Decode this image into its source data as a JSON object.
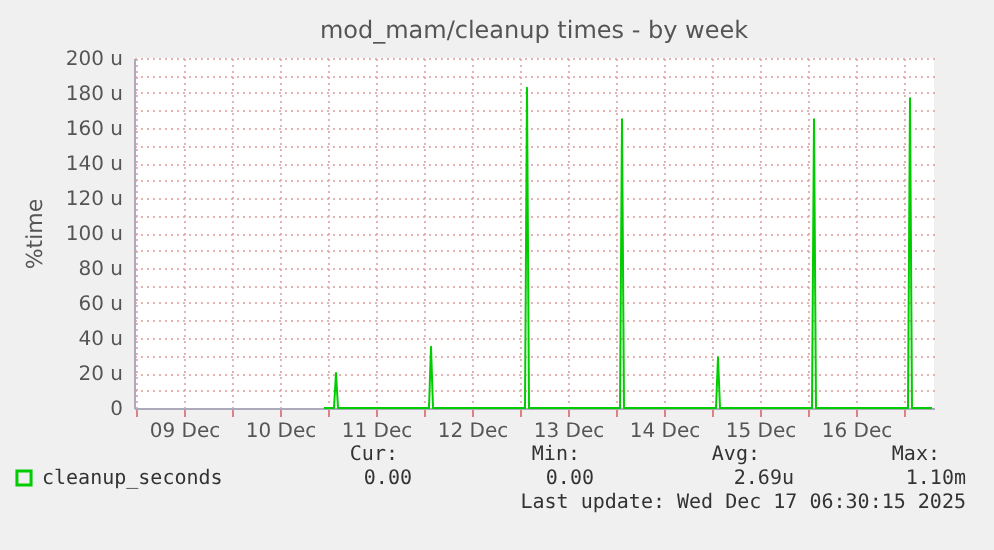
{
  "chart_data": {
    "type": "line",
    "title": "mod_mam/cleanup times - by week",
    "ylabel": "%time",
    "x": [
      "2025-12-10T23:00",
      "2025-12-11T01:30",
      "2025-12-11T02:00",
      "2025-12-11T02:30",
      "2025-12-12T01:15",
      "2025-12-12T01:45",
      "2025-12-12T02:15",
      "2025-12-13T01:15",
      "2025-12-13T01:45",
      "2025-12-13T02:15",
      "2025-12-14T01:00",
      "2025-12-14T01:30",
      "2025-12-14T02:00",
      "2025-12-15T01:00",
      "2025-12-15T01:30",
      "2025-12-15T02:00",
      "2025-12-16T01:00",
      "2025-12-16T01:30",
      "2025-12-16T02:00",
      "2025-12-17T01:00",
      "2025-12-17T01:30",
      "2025-12-17T02:00",
      "2025-12-17T07:00"
    ],
    "series": [
      {
        "name": "cleanup_seconds",
        "color": "#00cc00",
        "values": [
          0,
          0,
          20,
          0,
          0,
          35,
          0,
          0,
          183,
          0,
          0,
          165,
          0,
          0,
          29,
          0,
          0,
          165,
          0,
          0,
          177,
          0,
          0
        ]
      }
    ],
    "xlim": [
      "2025-12-08T23:30",
      "2025-12-17T07:30"
    ],
    "xticks": [
      {
        "value": "2025-12-09T00:00",
        "label": null
      },
      {
        "value": "2025-12-09T12:00",
        "label": "09 Dec"
      },
      {
        "value": "2025-12-10T00:00",
        "label": null
      },
      {
        "value": "2025-12-10T12:00",
        "label": "10 Dec"
      },
      {
        "value": "2025-12-11T00:00",
        "label": null
      },
      {
        "value": "2025-12-11T12:00",
        "label": "11 Dec"
      },
      {
        "value": "2025-12-12T00:00",
        "label": null
      },
      {
        "value": "2025-12-12T12:00",
        "label": "12 Dec"
      },
      {
        "value": "2025-12-13T00:00",
        "label": null
      },
      {
        "value": "2025-12-13T12:00",
        "label": "13 Dec"
      },
      {
        "value": "2025-12-14T00:00",
        "label": null
      },
      {
        "value": "2025-12-14T12:00",
        "label": "14 Dec"
      },
      {
        "value": "2025-12-15T00:00",
        "label": null
      },
      {
        "value": "2025-12-15T12:00",
        "label": "15 Dec"
      },
      {
        "value": "2025-12-16T00:00",
        "label": null
      },
      {
        "value": "2025-12-16T12:00",
        "label": "16 Dec"
      },
      {
        "value": "2025-12-17T00:00",
        "label": null
      }
    ],
    "ylim": [
      0,
      200
    ],
    "yticks": [
      0,
      {
        "value": 10,
        "label": null
      },
      {
        "value": 20,
        "label": "20 u"
      },
      {
        "value": 30,
        "label": null
      },
      {
        "value": 40,
        "label": "40 u"
      },
      {
        "value": 50,
        "label": null
      },
      {
        "value": 60,
        "label": "60 u"
      },
      {
        "value": 70,
        "label": null
      },
      {
        "value": 80,
        "label": "80 u"
      },
      {
        "value": 90,
        "label": null
      },
      {
        "value": 100,
        "label": "100 u"
      },
      {
        "value": 110,
        "label": null
      },
      {
        "value": 120,
        "label": "120 u"
      },
      {
        "value": 130,
        "label": null
      },
      {
        "value": 140,
        "label": "140 u"
      },
      {
        "value": 150,
        "label": null
      },
      {
        "value": 160,
        "label": "160 u"
      },
      {
        "value": 170,
        "label": null
      },
      {
        "value": 180,
        "label": "180 u"
      },
      {
        "value": 190,
        "label": null
      },
      {
        "value": 200,
        "label": "200 u"
      }
    ],
    "grid": true,
    "legend": "bottom left",
    "line_style": "solid",
    "marker": "none",
    "annotations": [
      "Cur:",
      "Min:",
      "Avg:",
      "Max:",
      "0.00",
      "0.00",
      "2.69u",
      "1.10m",
      "Last update: Wed Dec 17 06:30:15 2025"
    ]
  }
}
